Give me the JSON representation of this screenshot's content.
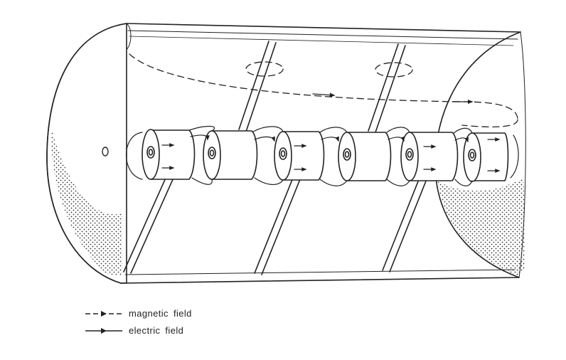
{
  "legend": {
    "magnetic": "magnetic field",
    "electric": "electric field"
  },
  "colors": {
    "ink": "#222222",
    "paper": "#ffffff"
  }
}
